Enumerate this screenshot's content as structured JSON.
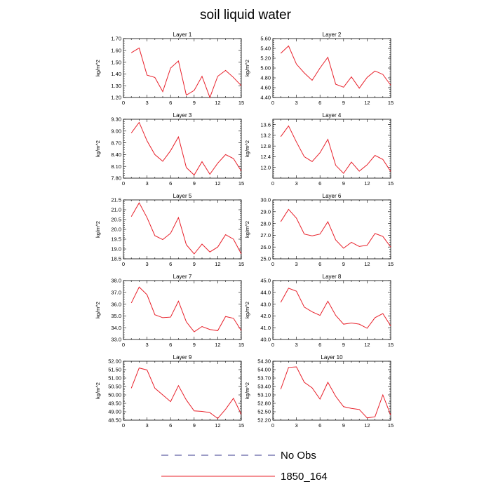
{
  "figure_title": "soil liquid water",
  "legend": [
    {
      "label": "No Obs",
      "color": "#3a3a8c",
      "dash": true
    },
    {
      "label": "1850_164",
      "color": "#e8202a",
      "dash": false
    }
  ],
  "chart_data": [
    {
      "type": "line",
      "title": "Layer 1",
      "ylabel": "kg/m^2",
      "x": [
        1,
        2,
        3,
        4,
        5,
        6,
        7,
        8,
        9,
        10,
        11,
        12,
        13,
        14,
        15
      ],
      "xlim": [
        0,
        15
      ],
      "xticks": [
        0,
        3,
        6,
        9,
        12,
        15
      ],
      "ylim": [
        1.2,
        1.7
      ],
      "yticks": [
        "1.20",
        "1.30",
        "1.40",
        "1.50",
        "1.60",
        "1.70"
      ],
      "series": [
        {
          "name": "1850_164",
          "values": [
            1.58,
            1.62,
            1.39,
            1.37,
            1.25,
            1.45,
            1.51,
            1.22,
            1.26,
            1.38,
            1.2,
            1.38,
            1.43,
            1.37,
            1.3
          ]
        }
      ]
    },
    {
      "type": "line",
      "title": "Layer 2",
      "ylabel": "kg/m^2",
      "x": [
        1,
        2,
        3,
        4,
        5,
        6,
        7,
        8,
        9,
        10,
        11,
        12,
        13,
        14,
        15
      ],
      "xlim": [
        0,
        15
      ],
      "xticks": [
        0,
        3,
        6,
        9,
        12,
        15
      ],
      "ylim": [
        4.4,
        5.6
      ],
      "yticks": [
        "4.40",
        "4.60",
        "4.80",
        "5.00",
        "5.20",
        "5.40",
        "5.60"
      ],
      "series": [
        {
          "name": "1850_164",
          "values": [
            5.3,
            5.45,
            5.08,
            4.9,
            4.75,
            5.0,
            5.22,
            4.67,
            4.61,
            4.82,
            4.59,
            4.81,
            4.94,
            4.87,
            4.65
          ]
        }
      ]
    },
    {
      "type": "line",
      "title": "Layer 3",
      "ylabel": "kg/m^2",
      "x": [
        1,
        2,
        3,
        4,
        5,
        6,
        7,
        8,
        9,
        10,
        11,
        12,
        13,
        14,
        15
      ],
      "xlim": [
        0,
        15
      ],
      "xticks": [
        0,
        3,
        6,
        9,
        12,
        15
      ],
      "ylim": [
        7.8,
        9.3
      ],
      "yticks": [
        "7.80",
        "8.10",
        "8.40",
        "8.70",
        "9.00",
        "9.30"
      ],
      "series": [
        {
          "name": "1850_164",
          "values": [
            8.95,
            9.22,
            8.75,
            8.4,
            8.23,
            8.5,
            8.85,
            8.07,
            7.88,
            8.22,
            7.9,
            8.18,
            8.4,
            8.3,
            7.98
          ]
        }
      ]
    },
    {
      "type": "line",
      "title": "Layer 4",
      "ylabel": "kg/m^2",
      "x": [
        1,
        2,
        3,
        4,
        5,
        6,
        7,
        8,
        9,
        10,
        11,
        12,
        13,
        14,
        15
      ],
      "xlim": [
        0,
        15
      ],
      "xticks": [
        0,
        3,
        6,
        9,
        12,
        15
      ],
      "ylim": [
        11.6,
        13.8
      ],
      "yticks": [
        "12.0",
        "12.4",
        "12.8",
        "13.2",
        "13.6"
      ],
      "series": [
        {
          "name": "1850_164",
          "values": [
            13.15,
            13.55,
            12.95,
            12.4,
            12.22,
            12.55,
            13.05,
            12.08,
            11.78,
            12.2,
            11.86,
            12.1,
            12.45,
            12.3,
            11.85
          ]
        }
      ]
    },
    {
      "type": "line",
      "title": "Layer 5",
      "ylabel": "kg/m^2",
      "x": [
        1,
        2,
        3,
        4,
        5,
        6,
        7,
        8,
        9,
        10,
        11,
        12,
        13,
        14,
        15
      ],
      "xlim": [
        0,
        15
      ],
      "xticks": [
        0,
        3,
        6,
        9,
        12,
        15
      ],
      "ylim": [
        18.5,
        21.5
      ],
      "yticks": [
        "18.5",
        "19.0",
        "19.5",
        "20.0",
        "20.5",
        "21.0",
        "21.5"
      ],
      "series": [
        {
          "name": "1850_164",
          "values": [
            20.65,
            21.35,
            20.6,
            19.68,
            19.48,
            19.8,
            20.6,
            19.22,
            18.75,
            19.25,
            18.85,
            19.1,
            19.73,
            19.5,
            18.75
          ]
        }
      ]
    },
    {
      "type": "line",
      "title": "Layer 6",
      "ylabel": "kg/m^2",
      "x": [
        1,
        2,
        3,
        4,
        5,
        6,
        7,
        8,
        9,
        10,
        11,
        12,
        13,
        14,
        15
      ],
      "xlim": [
        0,
        15
      ],
      "xticks": [
        0,
        3,
        6,
        9,
        12,
        15
      ],
      "ylim": [
        25.0,
        30.0
      ],
      "yticks": [
        "25.0",
        "26.0",
        "27.0",
        "28.0",
        "29.0",
        "30.0"
      ],
      "series": [
        {
          "name": "1850_164",
          "values": [
            28.15,
            29.2,
            28.45,
            27.1,
            26.95,
            27.1,
            28.15,
            26.6,
            25.9,
            26.4,
            26.05,
            26.15,
            27.15,
            26.9,
            26.0
          ]
        }
      ]
    },
    {
      "type": "line",
      "title": "Layer 7",
      "ylabel": "kg/m^2",
      "x": [
        1,
        2,
        3,
        4,
        5,
        6,
        7,
        8,
        9,
        10,
        11,
        12,
        13,
        14,
        15
      ],
      "xlim": [
        0,
        15
      ],
      "xticks": [
        0,
        3,
        6,
        9,
        12,
        15
      ],
      "ylim": [
        33.0,
        38.0
      ],
      "yticks": [
        "33.0",
        "34.0",
        "35.0",
        "36.0",
        "37.0",
        "38.0"
      ],
      "series": [
        {
          "name": "1850_164",
          "values": [
            36.1,
            37.45,
            36.8,
            35.1,
            34.85,
            34.9,
            36.25,
            34.5,
            33.65,
            34.1,
            33.85,
            33.75,
            34.95,
            34.8,
            33.75
          ]
        }
      ]
    },
    {
      "type": "line",
      "title": "Layer 8",
      "ylabel": "kg/m^2",
      "x": [
        1,
        2,
        3,
        4,
        5,
        6,
        7,
        8,
        9,
        10,
        11,
        12,
        13,
        14,
        15
      ],
      "xlim": [
        0,
        15
      ],
      "xticks": [
        0,
        3,
        6,
        9,
        12,
        15
      ],
      "ylim": [
        40.0,
        45.0
      ],
      "yticks": [
        "40.0",
        "41.0",
        "42.0",
        "43.0",
        "44.0",
        "45.0"
      ],
      "series": [
        {
          "name": "1850_164",
          "values": [
            43.15,
            44.35,
            44.1,
            42.75,
            42.35,
            42.05,
            43.25,
            42.05,
            41.3,
            41.4,
            41.3,
            40.95,
            41.85,
            42.2,
            41.15
          ]
        }
      ]
    },
    {
      "type": "line",
      "title": "Layer 9",
      "ylabel": "kg/m^2",
      "x": [
        1,
        2,
        3,
        4,
        5,
        6,
        7,
        8,
        9,
        10,
        11,
        12,
        13,
        14,
        15
      ],
      "xlim": [
        0,
        15
      ],
      "xticks": [
        0,
        3,
        6,
        9,
        12,
        15
      ],
      "ylim": [
        48.5,
        52.0
      ],
      "yticks": [
        "48.50",
        "49.00",
        "49.50",
        "50.00",
        "50.50",
        "51.00",
        "51.50",
        "52.00"
      ],
      "series": [
        {
          "name": "1850_164",
          "values": [
            50.4,
            51.6,
            51.48,
            50.4,
            50.0,
            49.6,
            50.55,
            49.7,
            49.05,
            49.02,
            48.95,
            48.6,
            49.15,
            49.8,
            48.85
          ]
        }
      ]
    },
    {
      "type": "line",
      "title": "Layer 10",
      "ylabel": "kg/m^2",
      "x": [
        1,
        2,
        3,
        4,
        5,
        6,
        7,
        8,
        9,
        10,
        11,
        12,
        13,
        14,
        15
      ],
      "xlim": [
        0,
        15
      ],
      "xticks": [
        0,
        3,
        6,
        9,
        12,
        15
      ],
      "ylim": [
        52.2,
        54.3
      ],
      "yticks": [
        "52.20",
        "52.50",
        "52.80",
        "53.10",
        "53.40",
        "53.70",
        "54.00",
        "54.30"
      ],
      "series": [
        {
          "name": "1850_164",
          "values": [
            53.3,
            54.08,
            54.1,
            53.55,
            53.35,
            52.95,
            53.55,
            53.05,
            52.68,
            52.62,
            52.58,
            52.28,
            52.32,
            53.1,
            52.38
          ]
        }
      ]
    }
  ]
}
